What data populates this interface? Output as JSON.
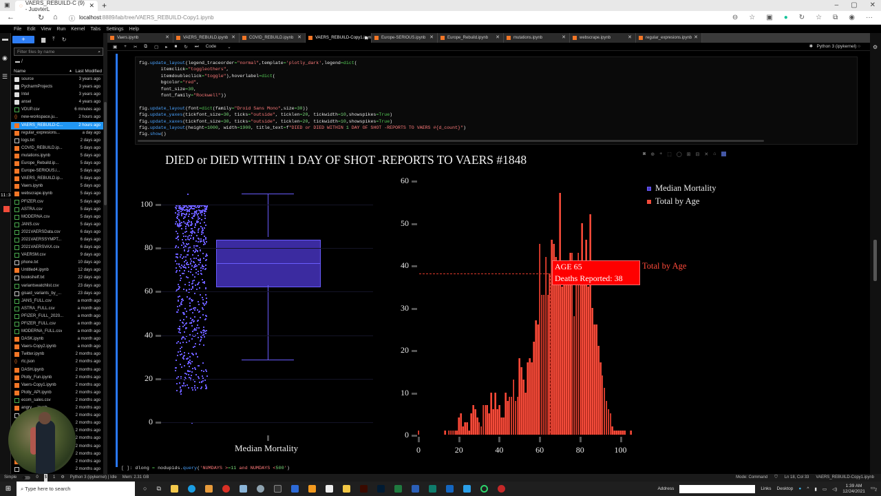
{
  "browser": {
    "tab_title": "VAERS_REBUILD-C (9) - JupyterL",
    "url_host": "localhost",
    "url_path": ":8889/lab/tree/VAERS_REBUILD-Copy1.ipynb",
    "new_tab": "+",
    "window_controls": [
      "–",
      "▢",
      "✕"
    ],
    "extensions": [
      "zoom-icon",
      "favorites-icon",
      "extension-icon",
      "grammarly-icon",
      "sync-icon",
      "collections-icon",
      "share-icon",
      "profile-avatar",
      "more-icon"
    ]
  },
  "menubar": {
    "items": [
      "File",
      "Edit",
      "View",
      "Run",
      "Kernel",
      "Tabs",
      "Settings",
      "Help"
    ]
  },
  "left_rail": {
    "clock_overlay": "11:38"
  },
  "file_browser": {
    "new_button": "+",
    "filter_placeholder": "Filter files by name",
    "breadcrumb": "/",
    "col_name": "Name",
    "col_modified": "Last Modified",
    "files": [
      {
        "name": "source",
        "type": "dir",
        "modified": "3 years ago"
      },
      {
        "name": "PycharmProjects",
        "type": "dir",
        "modified": "3 years ago"
      },
      {
        "name": "Intel",
        "type": "dir",
        "modified": "3 years ago"
      },
      {
        "name": "ansel",
        "type": "dir",
        "modified": "4 years ago"
      },
      {
        "name": "VDUP.csv",
        "type": "csv",
        "modified": "6 minutes ago"
      },
      {
        "name": "new-workspace.ju...",
        "type": "json",
        "modified": "2 hours ago"
      },
      {
        "name": "VAERS_REBUILD-C...",
        "type": "nb",
        "modified": "2 hours ago",
        "selected": true
      },
      {
        "name": "regular_expresions...",
        "type": "nb",
        "modified": "a day ago"
      },
      {
        "name": "logs.txt",
        "type": "txt",
        "modified": "2 days ago"
      },
      {
        "name": "COVID_REBUILD.ip...",
        "type": "nb",
        "modified": "5 days ago"
      },
      {
        "name": "mutations.ipynb",
        "type": "nb",
        "modified": "5 days ago"
      },
      {
        "name": "Europe_Rebuild.ip...",
        "type": "nb",
        "modified": "5 days ago"
      },
      {
        "name": "Europe-SERIOUS.i...",
        "type": "nb",
        "modified": "5 days ago"
      },
      {
        "name": "VAERS_REBUILD.ip...",
        "type": "nb",
        "modified": "5 days ago"
      },
      {
        "name": "Vaers.ipynb",
        "type": "nb",
        "modified": "5 days ago"
      },
      {
        "name": "webscrape.ipynb",
        "type": "nb",
        "modified": "5 days ago"
      },
      {
        "name": "PFIZER.csv",
        "type": "csv",
        "modified": "5 days ago"
      },
      {
        "name": "ASTRA.csv",
        "type": "csv",
        "modified": "5 days ago"
      },
      {
        "name": "MODERNA.csv",
        "type": "csv",
        "modified": "5 days ago"
      },
      {
        "name": "JANS.csv",
        "type": "csv",
        "modified": "5 days ago"
      },
      {
        "name": "2021VAERSData.csv",
        "type": "csv",
        "modified": "6 days ago"
      },
      {
        "name": "2021VAERSSYMPT...",
        "type": "csv",
        "modified": "6 days ago"
      },
      {
        "name": "2021VAERSVAX.csv",
        "type": "csv",
        "modified": "6 days ago"
      },
      {
        "name": "VAERSM.csv",
        "type": "csv",
        "modified": "9 days ago"
      },
      {
        "name": "phone.txt",
        "type": "txt",
        "modified": "10 days ago"
      },
      {
        "name": "Untitled4.ipynb",
        "type": "nb",
        "modified": "12 days ago"
      },
      {
        "name": "bookshelf.txt",
        "type": "txt",
        "modified": "22 days ago"
      },
      {
        "name": "variantswatchlist.csv",
        "type": "csv",
        "modified": "23 days ago"
      },
      {
        "name": "gisaid_variants_by_...",
        "type": "txt",
        "modified": "23 days ago"
      },
      {
        "name": "JANS_FULL.csv",
        "type": "csv",
        "modified": "a month ago"
      },
      {
        "name": "ASTRA_FULL.csv",
        "type": "csv",
        "modified": "a month ago"
      },
      {
        "name": "PFIZER_FULL_2020...",
        "type": "csv",
        "modified": "a month ago"
      },
      {
        "name": "PFIZER_FULL.csv",
        "type": "csv",
        "modified": "a month ago"
      },
      {
        "name": "MODERNA_FULL.csv",
        "type": "csv",
        "modified": "a month ago"
      },
      {
        "name": "DASK.ipynb",
        "type": "nb",
        "modified": "a month ago"
      },
      {
        "name": "Vaers-Copy2.ipynb",
        "type": "nb",
        "modified": "a month ago"
      },
      {
        "name": "Twitter.ipynb",
        "type": "nb",
        "modified": "2 months ago"
      },
      {
        "name": "rtc.json",
        "type": "json",
        "modified": "2 months ago"
      },
      {
        "name": "DASH.ipynb",
        "type": "nb",
        "modified": "2 months ago"
      },
      {
        "name": "Plotly_Fun.ipynb",
        "type": "nb",
        "modified": "2 months ago"
      },
      {
        "name": "Vaers-Copy1.ipynb",
        "type": "nb",
        "modified": "2 months ago"
      },
      {
        "name": "Plotly_API.ipynb",
        "type": "nb",
        "modified": "2 months ago"
      },
      {
        "name": "ecom_sales.csv",
        "type": "csv",
        "modified": "2 months ago"
      },
      {
        "name": "angry_...ipynb",
        "type": "nb",
        "modified": "2 months ago"
      },
      {
        "name": "",
        "type": "txt",
        "modified": "2 months ago"
      },
      {
        "name": "",
        "type": "nb",
        "modified": "2 months ago"
      },
      {
        "name": "",
        "type": "nb",
        "modified": "2 months ago"
      },
      {
        "name": "",
        "type": "nb",
        "modified": "2 months ago"
      },
      {
        "name": "",
        "type": "nb",
        "modified": "2 months ago"
      },
      {
        "name": "",
        "type": "nb",
        "modified": "2 months ago"
      },
      {
        "name": "",
        "type": "nb",
        "modified": "2 months ago"
      },
      {
        "name": "",
        "type": "txt",
        "modified": "2 months ago"
      },
      {
        "name": "",
        "type": "nb",
        "modified": "3 months ago"
      }
    ]
  },
  "doc_tabs": [
    {
      "label": "Vaers.ipynb"
    },
    {
      "label": "VAERS_REBUILD.ipynb"
    },
    {
      "label": "COVID_REBUILD.ipynb"
    },
    {
      "label": "VAERS_REBUILD-Copy1.ipynb",
      "active": true,
      "unsaved": true
    },
    {
      "label": "Europe-SERIOUS.ipynb"
    },
    {
      "label": "Europe_Rebuild.ipynb"
    },
    {
      "label": "mutations.ipynb"
    },
    {
      "label": "webscrape.ipynb"
    },
    {
      "label": "regular_expresions.ipynb"
    }
  ],
  "notebook_toolbar": {
    "cell_type": "Code",
    "kernel": "Python 3 (ipykernel)"
  },
  "code_cell": {
    "lines": [
      "fig.update_layout(legend_traceorder=\"normal\",template='plotly_dark',legend=dict(",
      "        itemclick=\"toggleothers\",",
      "        itemdoubleclick=\"toggle\"),hoverlabel=dict(",
      "        bgcolor=\"red\",",
      "        font_size=30,",
      "        font_family=\"Rockwell\"))",
      "",
      "fig.update_layout(font=dict(family=\"Droid Sans Mono\",size=30))",
      "fig.update_yaxes(tickfont_size=30, ticks=\"outside\", ticklen=20, tickwidth=10,showspikes=True)",
      "fig.update_xaxes(tickfont_size=30, ticks=\"outside\", ticklen=20, tickwidth=10,showspikes=True)",
      "fig.update_layout(height=1000, width=1900, title_text=f\"DIED or DIED WITHIN 1 DAY OF SHOT -REPORTS TO VAERS #{d_count}\")",
      "fig.show()"
    ]
  },
  "plot": {
    "title": "DIED or DIED WITHIN 1 DAY OF SHOT -REPORTS TO VAERS #1848",
    "modebar": [
      "camera-icon",
      "zoom-icon",
      "pan-icon",
      "box-select-icon",
      "lasso-icon",
      "zoom-in-icon",
      "zoom-out-icon",
      "autoscale-icon",
      "reset-icon",
      "plotly-logo"
    ],
    "legend": [
      {
        "label": "Median Mortality",
        "color": "#5a4bdc"
      },
      {
        "label": "Total by Age",
        "color": "#f24b3a"
      }
    ],
    "hover": {
      "line1": "AGE 65",
      "line2": "Deaths Reported: 38",
      "trace": "Total by Age"
    },
    "box_xlabel": "Median Mortality"
  },
  "chart_data": [
    {
      "type": "box",
      "title": "DIED or DIED WITHIN 1 DAY OF SHOT -REPORTS TO VAERS #1848",
      "xlabel": "Median Mortality",
      "ylabel": "",
      "ylim": [
        -5,
        108
      ],
      "yticks": [
        0,
        20,
        40,
        60,
        80,
        100
      ],
      "series": [
        {
          "name": "Median Mortality",
          "points": "all",
          "color": "#6a5cff"
        }
      ],
      "stats": {
        "min": 29,
        "q1": 62,
        "median": 73,
        "q3": 84,
        "max": 105
      },
      "point_range": [
        0,
        105
      ]
    },
    {
      "type": "bar",
      "xlabel": "",
      "ylabel": "",
      "xlim": [
        0,
        105
      ],
      "ylim": [
        0,
        60
      ],
      "xticks": [
        0,
        20,
        40,
        60,
        80,
        100
      ],
      "yticks": [
        0,
        10,
        20,
        30,
        40,
        50,
        60
      ],
      "series": [
        {
          "name": "Total by Age",
          "color": "#f24b3a"
        }
      ],
      "x": [
        0,
        13,
        15,
        16,
        17,
        18,
        19,
        20,
        21,
        22,
        23,
        24,
        25,
        26,
        27,
        28,
        29,
        30,
        31,
        32,
        33,
        34,
        35,
        36,
        37,
        38,
        39,
        40,
        41,
        42,
        43,
        44,
        45,
        46,
        47,
        48,
        49,
        50,
        51,
        52,
        53,
        54,
        55,
        56,
        57,
        58,
        59,
        60,
        61,
        62,
        63,
        64,
        65,
        66,
        67,
        68,
        69,
        70,
        71,
        72,
        73,
        74,
        75,
        76,
        77,
        78,
        79,
        80,
        81,
        82,
        83,
        84,
        85,
        86,
        87,
        88,
        89,
        90,
        91,
        92,
        93,
        94,
        95,
        96,
        97,
        98,
        99,
        100,
        101,
        102,
        105
      ],
      "values": [
        1,
        1,
        1,
        1,
        1,
        1,
        1,
        4,
        5,
        2,
        3,
        3,
        1,
        5,
        7,
        6,
        4,
        3,
        2,
        7,
        7,
        7,
        5,
        10,
        6,
        10,
        6,
        7,
        4,
        4,
        10,
        8,
        9,
        9,
        13,
        8,
        9,
        18,
        16,
        13,
        10,
        17,
        18,
        17,
        22,
        27,
        26,
        45,
        33,
        33,
        42,
        33,
        38,
        46,
        45,
        42,
        37,
        57,
        35,
        37,
        36,
        36,
        43,
        43,
        28,
        36,
        43,
        36,
        50,
        36,
        46,
        35,
        52,
        30,
        26,
        26,
        21,
        17,
        14,
        11,
        8,
        6,
        5,
        2,
        1,
        1,
        1,
        1,
        1,
        1,
        1
      ]
    }
  ],
  "cell2": {
    "prompt": "[ ]:",
    "code": "dlong = nodupids.query('NUMDAYS >=11 and NUMDAYS <500')"
  },
  "statusbar": {
    "mode_label": "Simple",
    "counts": [
      "0",
      "1"
    ],
    "kernel_status": "Python 3 (ipykernel) | Idle",
    "mem": "Mem: 2.31 GB",
    "mode": "Mode: Command",
    "cursor": "Ln 18, Col 33",
    "file": "VAERS_REBUILD-Copy1.ipynb"
  },
  "taskbar": {
    "search_placeholder": "Type here to search",
    "address_label": "Address",
    "links": "Links",
    "desktop": "Desktop",
    "time": "1:39 AM",
    "date": "12/24/2021",
    "notif": "2"
  }
}
